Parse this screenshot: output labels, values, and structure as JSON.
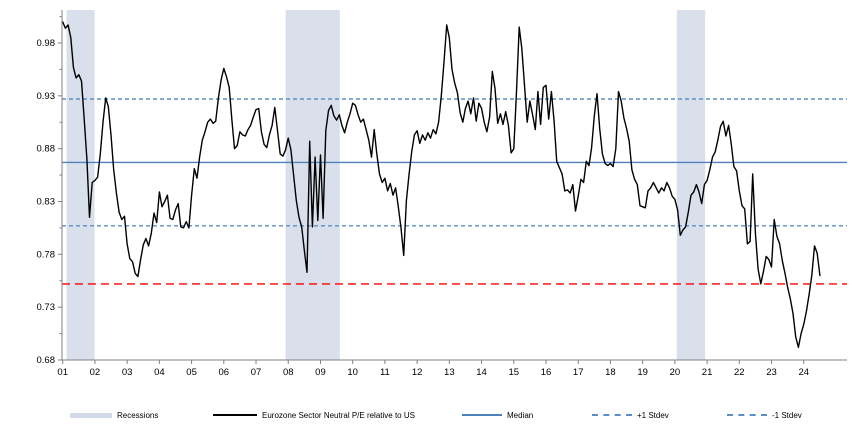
{
  "chart_data": {
    "type": "line",
    "title": "",
    "xlabel": "",
    "ylabel": "",
    "grid": false,
    "legend_position": "bottom",
    "ylim": [
      0.68,
      1.011
    ],
    "xlim": [
      2001.0,
      2025.35
    ],
    "y_tick_labels": [
      "0.98",
      "0.93",
      "0.88",
      "0.83",
      "0.78",
      "0.73",
      "0.68"
    ],
    "y_tick_values": [
      0.98,
      0.93,
      0.88,
      0.83,
      0.78,
      0.73,
      0.68
    ],
    "y_minor_step": 0.025,
    "x_tick_labels": [
      "01",
      "02",
      "03",
      "04",
      "05",
      "06",
      "07",
      "08",
      "09",
      "10",
      "11",
      "12",
      "13",
      "14",
      "15",
      "16",
      "17",
      "18",
      "19",
      "20",
      "21",
      "22",
      "23",
      "24"
    ],
    "x_tick_years": [
      2001,
      2002,
      2003,
      2004,
      2005,
      2006,
      2007,
      2008,
      2009,
      2010,
      2011,
      2012,
      2013,
      2014,
      2015,
      2016,
      2017,
      2018,
      2019,
      2020,
      2021,
      2022,
      2023,
      2024
    ],
    "series": [
      {
        "name": "Eurozone Sector Neutral P/E relative to US",
        "color": "#000000",
        "x_start_year": 2001.0,
        "step_months": 1,
        "values": [
          1.0,
          0.994,
          0.997,
          0.985,
          0.957,
          0.947,
          0.95,
          0.944,
          0.908,
          0.87,
          0.815,
          0.848,
          0.85,
          0.853,
          0.875,
          0.905,
          0.928,
          0.92,
          0.893,
          0.86,
          0.838,
          0.82,
          0.813,
          0.816,
          0.79,
          0.776,
          0.773,
          0.762,
          0.759,
          0.775,
          0.789,
          0.795,
          0.788,
          0.8,
          0.819,
          0.81,
          0.839,
          0.825,
          0.83,
          0.836,
          0.814,
          0.813,
          0.822,
          0.828,
          0.806,
          0.805,
          0.811,
          0.805,
          0.836,
          0.861,
          0.852,
          0.872,
          0.888,
          0.896,
          0.905,
          0.908,
          0.904,
          0.906,
          0.928,
          0.945,
          0.956,
          0.948,
          0.938,
          0.907,
          0.88,
          0.883,
          0.896,
          0.893,
          0.892,
          0.898,
          0.902,
          0.91,
          0.917,
          0.918,
          0.896,
          0.884,
          0.881,
          0.893,
          0.902,
          0.919,
          0.897,
          0.875,
          0.873,
          0.879,
          0.89,
          0.879,
          0.855,
          0.831,
          0.815,
          0.806,
          0.784,
          0.763,
          0.887,
          0.806,
          0.872,
          0.812,
          0.874,
          0.814,
          0.897,
          0.916,
          0.921,
          0.911,
          0.907,
          0.912,
          0.902,
          0.895,
          0.905,
          0.913,
          0.923,
          0.921,
          0.912,
          0.905,
          0.908,
          0.898,
          0.888,
          0.872,
          0.898,
          0.875,
          0.856,
          0.848,
          0.852,
          0.84,
          0.847,
          0.836,
          0.843,
          0.825,
          0.805,
          0.779,
          0.831,
          0.856,
          0.877,
          0.893,
          0.897,
          0.885,
          0.893,
          0.888,
          0.895,
          0.89,
          0.898,
          0.894,
          0.905,
          0.93,
          0.962,
          0.997,
          0.985,
          0.955,
          0.942,
          0.933,
          0.914,
          0.905,
          0.918,
          0.925,
          0.913,
          0.928,
          0.906,
          0.923,
          0.918,
          0.905,
          0.896,
          0.91,
          0.953,
          0.937,
          0.904,
          0.913,
          0.903,
          0.915,
          0.902,
          0.876,
          0.88,
          0.934,
          0.995,
          0.975,
          0.94,
          0.905,
          0.925,
          0.912,
          0.898,
          0.934,
          0.903,
          0.938,
          0.94,
          0.908,
          0.934,
          0.906,
          0.868,
          0.862,
          0.856,
          0.84,
          0.841,
          0.838,
          0.846,
          0.821,
          0.835,
          0.851,
          0.848,
          0.868,
          0.864,
          0.881,
          0.911,
          0.932,
          0.899,
          0.875,
          0.866,
          0.864,
          0.866,
          0.863,
          0.88,
          0.934,
          0.925,
          0.909,
          0.899,
          0.887,
          0.86,
          0.851,
          0.846,
          0.826,
          0.825,
          0.824,
          0.84,
          0.843,
          0.848,
          0.843,
          0.838,
          0.843,
          0.84,
          0.848,
          0.843,
          0.835,
          0.832,
          0.822,
          0.798,
          0.803,
          0.806,
          0.82,
          0.836,
          0.839,
          0.846,
          0.839,
          0.828,
          0.846,
          0.85,
          0.86,
          0.872,
          0.877,
          0.888,
          0.901,
          0.906,
          0.892,
          0.902,
          0.884,
          0.863,
          0.859,
          0.84,
          0.826,
          0.823,
          0.79,
          0.792,
          0.856,
          0.8,
          0.766,
          0.752,
          0.764,
          0.778,
          0.775,
          0.768,
          0.813,
          0.797,
          0.79,
          0.774,
          0.762,
          0.749,
          0.738,
          0.724,
          0.702,
          0.692,
          0.705,
          0.714,
          0.726,
          0.742,
          0.76,
          0.788,
          0.781,
          0.76
        ]
      }
    ],
    "ref_lines": [
      {
        "name": "median-line",
        "label": "Median",
        "value": 0.867,
        "color": "#4f81bd",
        "style": "solid"
      },
      {
        "name": "plus1-stdev-line",
        "label": "+1 Stdev",
        "value": 0.927,
        "color": "#5b8fc6",
        "style": "dashed"
      },
      {
        "name": "minus1-stdev-line",
        "label": "-1 Stdev",
        "value": 0.807,
        "color": "#5b8fc6",
        "style": "dashed"
      },
      {
        "name": "red-dashed-line",
        "label": "",
        "value": 0.752,
        "color": "#ff0000",
        "style": "dashed-long"
      }
    ],
    "recession_bands": [
      {
        "start": 2001.12,
        "end": 2001.99
      },
      {
        "start": 2007.92,
        "end": 2009.6
      },
      {
        "start": 2020.06,
        "end": 2020.94
      }
    ],
    "colors": {
      "recession_band": "#d9dfeb",
      "series_line": "#000000",
      "median_blue": "#4f81bd",
      "stdev_blue": "#5b8fc6",
      "red_line": "#ff0000",
      "axis": "#808080",
      "tick_label": "#000000"
    }
  },
  "legend": {
    "items": [
      {
        "label": "Recessions"
      },
      {
        "label": "Eurozone Sector Neutral P/E relative to US"
      },
      {
        "label": "Median"
      },
      {
        "label": "+1 Stdev"
      },
      {
        "label": "-1 Stdev"
      }
    ]
  }
}
